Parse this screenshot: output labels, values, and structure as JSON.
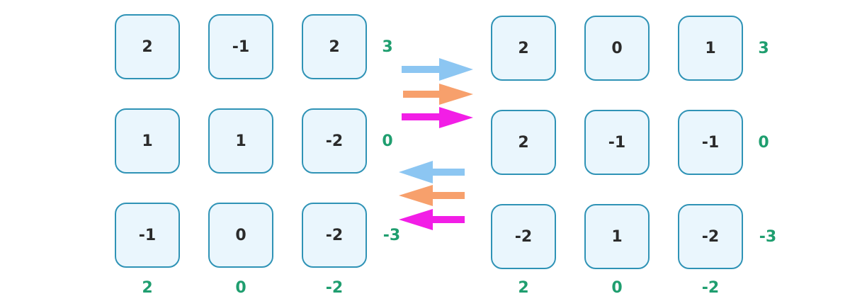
{
  "left": {
    "cells": [
      [
        "2",
        "-1",
        "2"
      ],
      [
        "1",
        "1",
        "-2"
      ],
      [
        "-1",
        "0",
        "-2"
      ]
    ],
    "row_sums": [
      "3",
      "0",
      "-3"
    ],
    "col_sums": [
      "2",
      "0",
      "-2"
    ]
  },
  "right": {
    "cells": [
      [
        "2",
        "0",
        "1"
      ],
      [
        "2",
        "-1",
        "-1"
      ],
      [
        "-2",
        "1",
        "-2"
      ]
    ],
    "row_sums": [
      "3",
      "0",
      "-3"
    ],
    "col_sums": [
      "2",
      "0",
      "-2"
    ]
  },
  "colors": {
    "cell_border": "#2f93b6",
    "cell_fill": "#eaf6fd",
    "sum_text": "#1f9e6f",
    "arrow_blue": "#8cc6f2",
    "arrow_orange": "#f7a06c",
    "arrow_magenta": "#f21ee6"
  },
  "arrows": {
    "forward": [
      "arrow_blue",
      "arrow_orange",
      "arrow_magenta"
    ],
    "backward": [
      "arrow_blue",
      "arrow_orange",
      "arrow_magenta"
    ]
  }
}
